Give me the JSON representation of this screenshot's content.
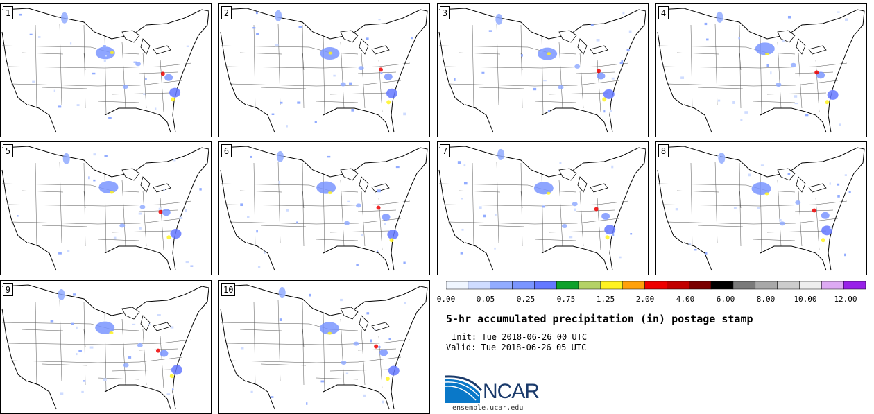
{
  "panels": [
    {
      "label": "1"
    },
    {
      "label": "2"
    },
    {
      "label": "3"
    },
    {
      "label": "4"
    },
    {
      "label": "5"
    },
    {
      "label": "6"
    },
    {
      "label": "7"
    },
    {
      "label": "8"
    },
    {
      "label": "9"
    },
    {
      "label": "10"
    }
  ],
  "colorbar": {
    "colors": [
      "#f0f6ff",
      "#cfdcff",
      "#92acff",
      "#7a95ff",
      "#6478ff",
      "#0ea12b",
      "#b4d266",
      "#fff321",
      "#ffa10a",
      "#ee0000",
      "#c10000",
      "#7a0000",
      "#000000",
      "#7a7a7a",
      "#a8a8a8",
      "#cccccc",
      "#eeeeee",
      "#ddaaf3",
      "#9822e8"
    ],
    "tick_labels": [
      "0.00",
      "0.05",
      "0.25",
      "0.75",
      "1.25",
      "2.00",
      "4.00",
      "6.00",
      "8.00",
      "10.00",
      "12.00"
    ]
  },
  "title": "5-hr accumulated precipitation (in) postage stamp",
  "init_text": "Init: Tue 2018-06-26 00 UTC",
  "valid_text": "Valid: Tue 2018-06-26 05 UTC",
  "logo": {
    "text": "NCAR",
    "color": "#1a3a6b",
    "accent": "#0a78c8"
  },
  "site": "ensemble.ucar.edu"
}
